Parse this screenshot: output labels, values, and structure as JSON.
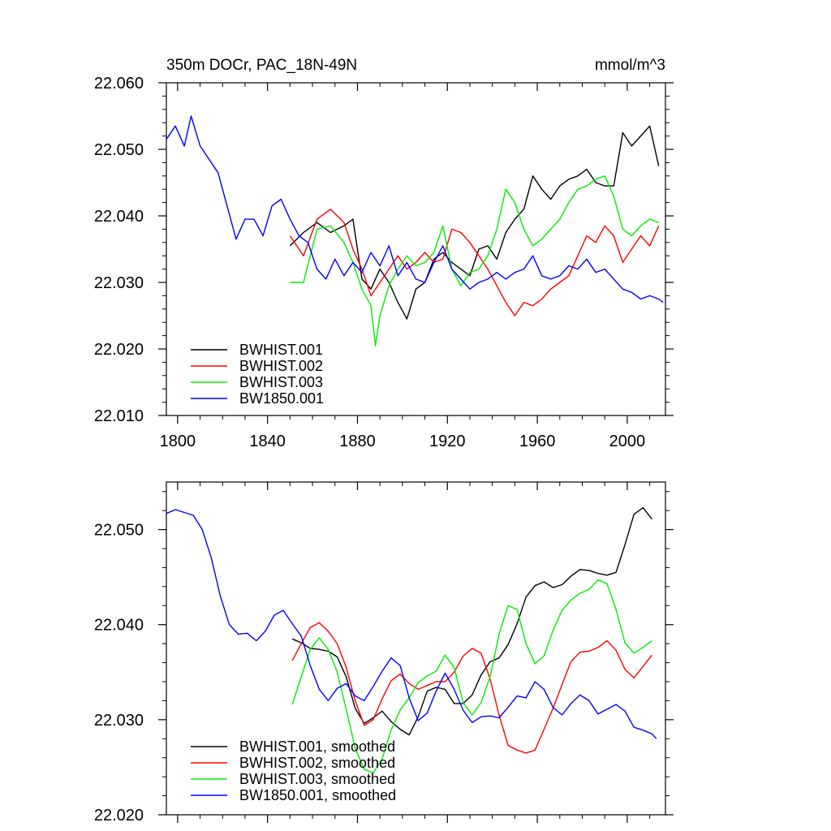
{
  "figure": {
    "title_left": "350m DOCr, PAC_18N-49N",
    "title_right": "mmol/m^3"
  },
  "chart_data": [
    {
      "type": "line",
      "panel": "top",
      "xlim": [
        1795,
        2017
      ],
      "ylim": [
        22.01,
        22.06
      ],
      "x_ticks": [
        1800,
        1840,
        1880,
        1920,
        1960,
        2000
      ],
      "x_tick_labels": [
        "1800",
        "1840",
        "1880",
        "1920",
        "1960",
        "2000"
      ],
      "y_ticks": [
        22.01,
        22.02,
        22.03,
        22.04,
        22.05,
        22.06
      ],
      "y_tick_labels": [
        "22.010",
        "22.020",
        "22.030",
        "22.040",
        "22.050",
        "22.060"
      ],
      "legend_position": "bottom-left",
      "series": [
        {
          "name": "BWHIST.001",
          "color": "#000000",
          "x": [
            1850,
            1856,
            1862,
            1868,
            1874,
            1878,
            1882,
            1886,
            1890,
            1894,
            1898,
            1902,
            1906,
            1910,
            1914,
            1918,
            1922,
            1926,
            1930,
            1934,
            1938,
            1942,
            1946,
            1950,
            1954,
            1958,
            1962,
            1966,
            1970,
            1974,
            1978,
            1982,
            1986,
            1990,
            1994,
            1998,
            2002,
            2006,
            2010,
            2014
          ],
          "values": [
            22.0355,
            22.0375,
            22.039,
            22.0375,
            22.0385,
            22.0395,
            22.0305,
            22.029,
            22.032,
            22.03,
            22.027,
            22.0245,
            22.029,
            22.03,
            22.0335,
            22.0345,
            22.033,
            22.032,
            22.031,
            22.035,
            22.0355,
            22.0335,
            22.0375,
            22.0395,
            22.041,
            22.046,
            22.044,
            22.0425,
            22.0445,
            22.0455,
            22.046,
            22.047,
            22.045,
            22.0445,
            22.0445,
            22.0525,
            22.0505,
            22.052,
            22.0535,
            22.0475
          ]
        },
        {
          "name": "BWHIST.002",
          "color": "#ff0000",
          "x": [
            1850,
            1856,
            1862,
            1868,
            1874,
            1878,
            1882,
            1886,
            1890,
            1894,
            1898,
            1902,
            1906,
            1910,
            1914,
            1918,
            1922,
            1926,
            1930,
            1934,
            1938,
            1942,
            1946,
            1950,
            1954,
            1958,
            1962,
            1966,
            1970,
            1974,
            1978,
            1982,
            1986,
            1990,
            1994,
            1998,
            2002,
            2006,
            2010,
            2014
          ],
          "values": [
            22.037,
            22.034,
            22.0395,
            22.041,
            22.039,
            22.035,
            22.032,
            22.028,
            22.03,
            22.032,
            22.034,
            22.032,
            22.033,
            22.0345,
            22.033,
            22.0335,
            22.038,
            22.0375,
            22.036,
            22.034,
            22.032,
            22.0295,
            22.027,
            22.025,
            22.027,
            22.0265,
            22.0275,
            22.029,
            22.03,
            22.031,
            22.034,
            22.037,
            22.036,
            22.0385,
            22.037,
            22.033,
            22.035,
            22.037,
            22.0355,
            22.0385
          ]
        },
        {
          "name": "BWHIST.003",
          "color": "#00ee00",
          "x": [
            1850,
            1856,
            1862,
            1868,
            1874,
            1878,
            1882,
            1886,
            1888,
            1890,
            1894,
            1898,
            1902,
            1906,
            1910,
            1914,
            1918,
            1922,
            1926,
            1930,
            1934,
            1938,
            1942,
            1946,
            1950,
            1954,
            1958,
            1962,
            1966,
            1970,
            1974,
            1978,
            1982,
            1986,
            1990,
            1994,
            1998,
            2002,
            2006,
            2010,
            2014
          ],
          "values": [
            22.03,
            22.03,
            22.038,
            22.0385,
            22.036,
            22.033,
            22.029,
            22.0265,
            22.0205,
            22.025,
            22.0295,
            22.032,
            22.034,
            22.0325,
            22.033,
            22.0345,
            22.0385,
            22.032,
            22.0295,
            22.0315,
            22.032,
            22.034,
            22.038,
            22.044,
            22.042,
            22.038,
            22.0355,
            22.0365,
            22.038,
            22.0395,
            22.042,
            22.044,
            22.0445,
            22.0455,
            22.046,
            22.043,
            22.038,
            22.037,
            22.0385,
            22.0395,
            22.039
          ]
        },
        {
          "name": "BW1850.001",
          "color": "#0000ff",
          "x": [
            1795,
            1799,
            1803,
            1806,
            1810,
            1814,
            1818,
            1822,
            1826,
            1830,
            1834,
            1838,
            1842,
            1846,
            1850,
            1854,
            1858,
            1862,
            1866,
            1870,
            1874,
            1878,
            1882,
            1886,
            1890,
            1894,
            1898,
            1902,
            1906,
            1910,
            1914,
            1918,
            1922,
            1926,
            1930,
            1934,
            1938,
            1942,
            1946,
            1950,
            1954,
            1958,
            1962,
            1966,
            1970,
            1974,
            1978,
            1982,
            1986,
            1990,
            1994,
            1998,
            2002,
            2006,
            2010,
            2014,
            2016
          ],
          "values": [
            22.0515,
            22.0535,
            22.0505,
            22.055,
            22.0505,
            22.0485,
            22.0465,
            22.0415,
            22.0365,
            22.0395,
            22.0395,
            22.037,
            22.0415,
            22.0425,
            22.0395,
            22.037,
            22.036,
            22.032,
            22.0305,
            22.0335,
            22.031,
            22.033,
            22.0315,
            22.0345,
            22.0325,
            22.0355,
            22.031,
            22.033,
            22.0305,
            22.03,
            22.033,
            22.0355,
            22.032,
            22.0305,
            22.029,
            22.03,
            22.0305,
            22.0315,
            22.0305,
            22.0315,
            22.032,
            22.034,
            22.031,
            22.0305,
            22.031,
            22.0325,
            22.032,
            22.0335,
            22.0315,
            22.032,
            22.0305,
            22.029,
            22.0285,
            22.0275,
            22.028,
            22.0275,
            22.027
          ]
        }
      ]
    },
    {
      "type": "line",
      "panel": "bottom",
      "xlim": [
        1795,
        2017
      ],
      "ylim": [
        22.02,
        22.055
      ],
      "x_ticks": [
        1800,
        1840,
        1880,
        1920,
        1960,
        2000
      ],
      "x_tick_labels": [],
      "y_ticks": [
        22.02,
        22.03,
        22.04,
        22.05
      ],
      "y_tick_labels": [
        "22.020",
        "22.030",
        "22.040",
        "22.050"
      ],
      "legend_position": "bottom-left",
      "series": [
        {
          "name": "BWHIST.001, smoothed",
          "color": "#000000",
          "x": [
            1851,
            1855,
            1859,
            1863,
            1867,
            1871,
            1875,
            1879,
            1883,
            1887,
            1891,
            1895,
            1899,
            1903,
            1907,
            1911,
            1915,
            1919,
            1923,
            1927,
            1931,
            1935,
            1939,
            1943,
            1947,
            1951,
            1955,
            1959,
            1963,
            1967,
            1971,
            1975,
            1979,
            1983,
            1987,
            1991,
            1995,
            1999,
            2003,
            2007,
            2011
          ],
          "values": [
            22.0385,
            22.0381,
            22.0375,
            22.0374,
            22.0372,
            22.0366,
            22.0345,
            22.0312,
            22.0296,
            22.0302,
            22.0309,
            22.0298,
            22.029,
            22.0284,
            22.0303,
            22.033,
            22.0334,
            22.0332,
            22.0317,
            22.0317,
            22.0326,
            22.0347,
            22.0361,
            22.0365,
            22.0379,
            22.0401,
            22.0429,
            22.0441,
            22.0445,
            22.0439,
            22.0442,
            22.0451,
            22.0458,
            22.0457,
            22.0454,
            22.0452,
            22.0455,
            22.0484,
            22.0516,
            22.0523,
            22.0511
          ]
        },
        {
          "name": "BWHIST.002, smoothed",
          "color": "#ff0000",
          "x": [
            1851,
            1855,
            1859,
            1863,
            1867,
            1871,
            1875,
            1879,
            1883,
            1887,
            1891,
            1895,
            1899,
            1903,
            1907,
            1911,
            1915,
            1919,
            1923,
            1927,
            1931,
            1935,
            1939,
            1943,
            1947,
            1951,
            1955,
            1959,
            1963,
            1967,
            1971,
            1975,
            1979,
            1983,
            1987,
            1991,
            1995,
            1999,
            2003,
            2007,
            2011
          ],
          "values": [
            22.0362,
            22.038,
            22.0397,
            22.0402,
            22.0393,
            22.038,
            22.0355,
            22.032,
            22.0294,
            22.03,
            22.0322,
            22.0341,
            22.0348,
            22.0338,
            22.0332,
            22.0336,
            22.034,
            22.034,
            22.035,
            22.0367,
            22.0375,
            22.037,
            22.0343,
            22.0305,
            22.0273,
            22.0268,
            22.0265,
            22.0268,
            22.029,
            22.0312,
            22.0337,
            22.0361,
            22.0371,
            22.0372,
            22.0376,
            22.0383,
            22.0373,
            22.0353,
            22.0344,
            22.0356,
            22.0368
          ]
        },
        {
          "name": "BWHIST.003, smoothed",
          "color": "#00ee00",
          "x": [
            1851,
            1855,
            1859,
            1863,
            1867,
            1871,
            1875,
            1879,
            1883,
            1887,
            1891,
            1895,
            1899,
            1903,
            1907,
            1911,
            1915,
            1919,
            1923,
            1927,
            1931,
            1935,
            1939,
            1943,
            1947,
            1951,
            1955,
            1959,
            1963,
            1967,
            1971,
            1975,
            1979,
            1983,
            1987,
            1991,
            1995,
            1999,
            2003,
            2007,
            2011
          ],
          "values": [
            22.0316,
            22.0345,
            22.0374,
            22.0386,
            22.0374,
            22.035,
            22.0311,
            22.027,
            22.0248,
            22.0244,
            22.0259,
            22.0289,
            22.031,
            22.0323,
            22.0339,
            22.0346,
            22.0351,
            22.0368,
            22.0355,
            22.0318,
            22.0305,
            22.0318,
            22.0345,
            22.039,
            22.042,
            22.0416,
            22.038,
            22.0359,
            22.0367,
            22.0394,
            22.0415,
            22.0426,
            22.0433,
            22.0437,
            22.0447,
            22.0443,
            22.0416,
            22.0381,
            22.037,
            22.0376,
            22.0383
          ]
        },
        {
          "name": "BW1850.001, smoothed",
          "color": "#0000ff",
          "x": [
            1795,
            1799,
            1803,
            1807,
            1811,
            1815,
            1819,
            1823,
            1827,
            1831,
            1835,
            1839,
            1843,
            1847,
            1851,
            1855,
            1859,
            1863,
            1867,
            1871,
            1875,
            1879,
            1883,
            1887,
            1891,
            1895,
            1899,
            1903,
            1907,
            1911,
            1915,
            1919,
            1923,
            1927,
            1931,
            1935,
            1939,
            1943,
            1947,
            1951,
            1955,
            1959,
            1963,
            1967,
            1971,
            1975,
            1979,
            1983,
            1987,
            1991,
            1995,
            1999,
            2003,
            2007,
            2011,
            2013
          ],
          "values": [
            22.0517,
            22.0521,
            22.0518,
            22.0515,
            22.05,
            22.047,
            22.043,
            22.04,
            22.039,
            22.0391,
            22.0383,
            22.0393,
            22.041,
            22.0415,
            22.0401,
            22.0388,
            22.0357,
            22.0332,
            22.032,
            22.0333,
            22.0338,
            22.0325,
            22.032,
            22.0335,
            22.0351,
            22.0365,
            22.0357,
            22.0323,
            22.0299,
            22.0307,
            22.033,
            22.0349,
            22.0332,
            22.031,
            22.0297,
            22.0303,
            22.0304,
            22.0302,
            22.0313,
            22.0325,
            22.0323,
            22.034,
            22.0332,
            22.0313,
            22.0305,
            22.0317,
            22.0326,
            22.032,
            22.0306,
            22.0311,
            22.0316,
            22.0309,
            22.0292,
            22.0289,
            22.0285,
            22.028
          ]
        }
      ]
    }
  ]
}
